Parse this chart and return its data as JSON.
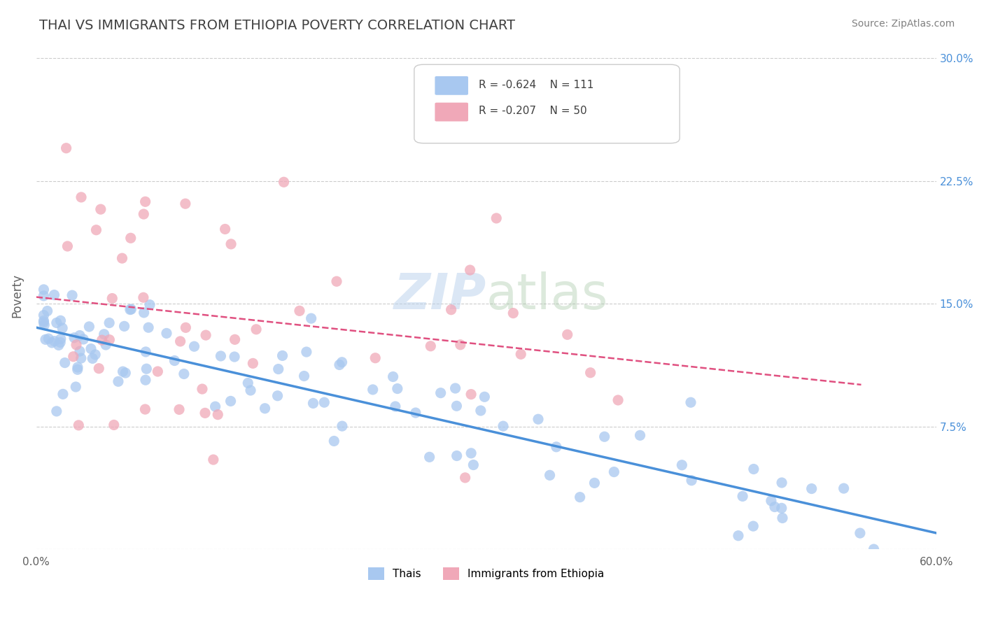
{
  "title": "THAI VS IMMIGRANTS FROM ETHIOPIA POVERTY CORRELATION CHART",
  "source": "Source: ZipAtlas.com",
  "ylabel": "Poverty",
  "xmin": 0.0,
  "xmax": 0.6,
  "ymin": 0.0,
  "ymax": 0.31,
  "yticks": [
    0.0,
    0.075,
    0.15,
    0.225,
    0.3
  ],
  "ytick_labels": [
    "",
    "7.5%",
    "15.0%",
    "22.5%",
    "30.0%"
  ],
  "legend_r1": "R = -0.624",
  "legend_n1": "N = 111",
  "legend_r2": "R = -0.207",
  "legend_n2": "N = 50",
  "color_thai": "#a8c8f0",
  "color_ethiopia": "#f0a8b8",
  "color_trend_thai": "#4a90d9",
  "color_trend_ethiopia": "#e05080",
  "background_color": "#ffffff",
  "grid_color": "#cccccc",
  "title_color": "#404040",
  "source_color": "#808080"
}
